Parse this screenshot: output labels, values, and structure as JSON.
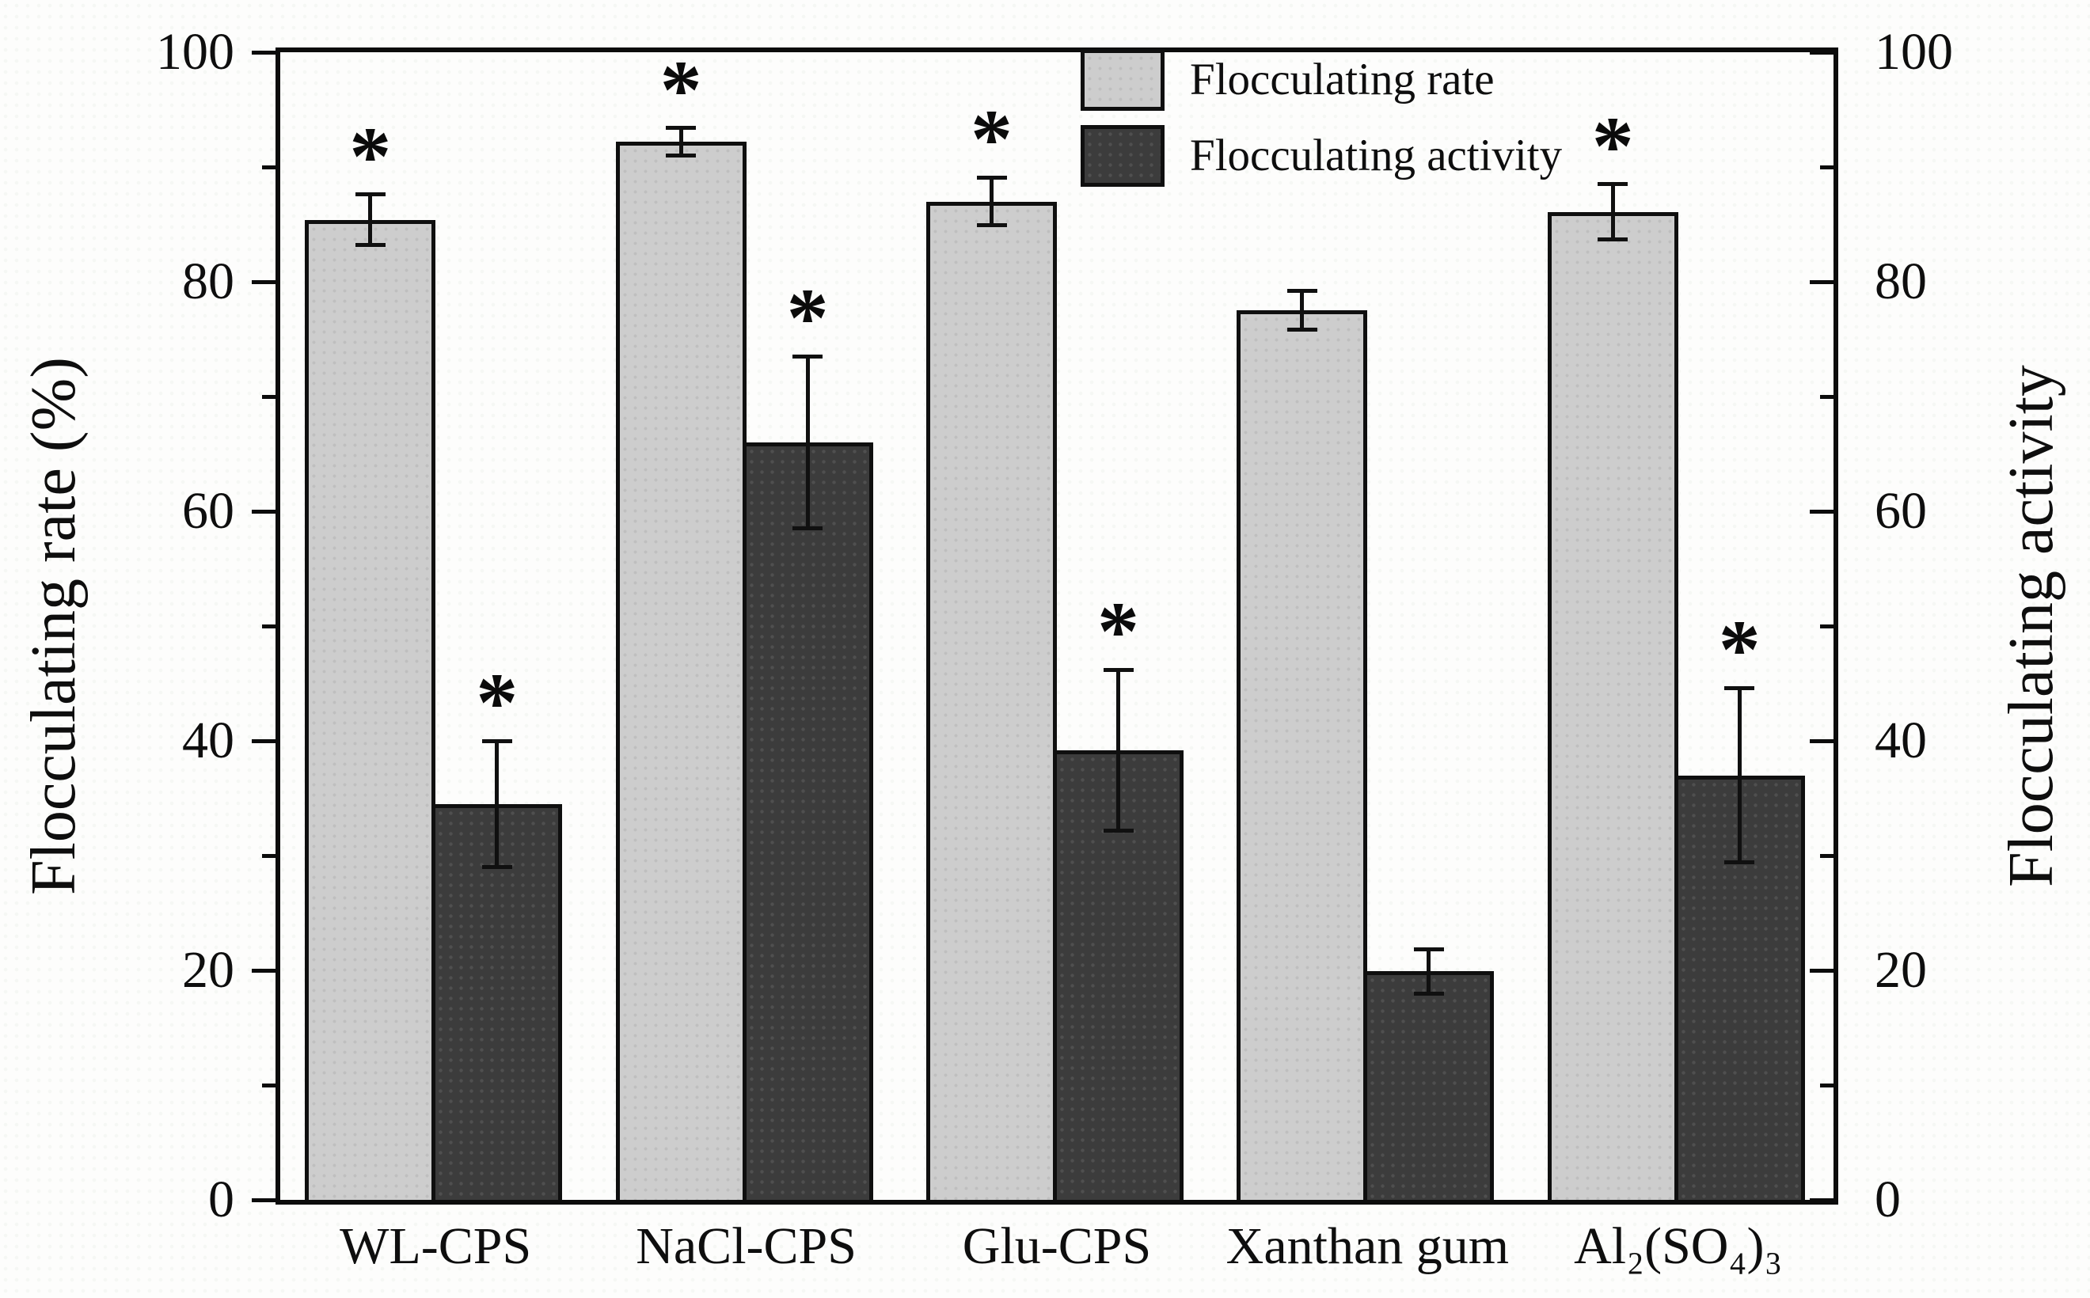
{
  "figure": {
    "left_axis_title": "Flocculating rate (%)",
    "right_axis_title": "Flocculating activity",
    "y_axis_ticks": [
      0,
      10,
      20,
      30,
      40,
      50,
      60,
      70,
      80,
      90,
      100
    ],
    "y_axis_major_ticks": [
      0,
      20,
      40,
      60,
      80,
      100
    ],
    "significance_marker": "*"
  },
  "chart_data": {
    "type": "bar",
    "title": "",
    "xlabel": "",
    "ylabel_left": "Flocculating rate (%)",
    "ylabel_right": "Flocculating activity",
    "ylim": [
      0,
      100
    ],
    "grid": false,
    "legend_position": "top-right-inside",
    "categories": [
      "WL-CPS",
      "NaCl-CPS",
      "Glu-CPS",
      "Xanthan gum",
      "Al₂(SO₄)₃"
    ],
    "series": [
      {
        "name": "Flocculating rate",
        "axis": "left",
        "color": "#cdcdcd",
        "values": [
          85.4,
          92.2,
          87.0,
          77.5,
          86.1
        ],
        "errors": [
          2.2,
          1.2,
          2.1,
          1.7,
          2.4
        ],
        "significant": [
          true,
          true,
          true,
          false,
          true
        ]
      },
      {
        "name": "Flocculating activity",
        "axis": "right",
        "color": "#3c3c3c",
        "values": [
          34.5,
          66.0,
          39.2,
          19.9,
          37.0
        ],
        "errors": [
          5.5,
          7.5,
          7.0,
          1.9,
          7.6
        ],
        "significant": [
          true,
          true,
          true,
          false,
          true
        ]
      }
    ]
  }
}
